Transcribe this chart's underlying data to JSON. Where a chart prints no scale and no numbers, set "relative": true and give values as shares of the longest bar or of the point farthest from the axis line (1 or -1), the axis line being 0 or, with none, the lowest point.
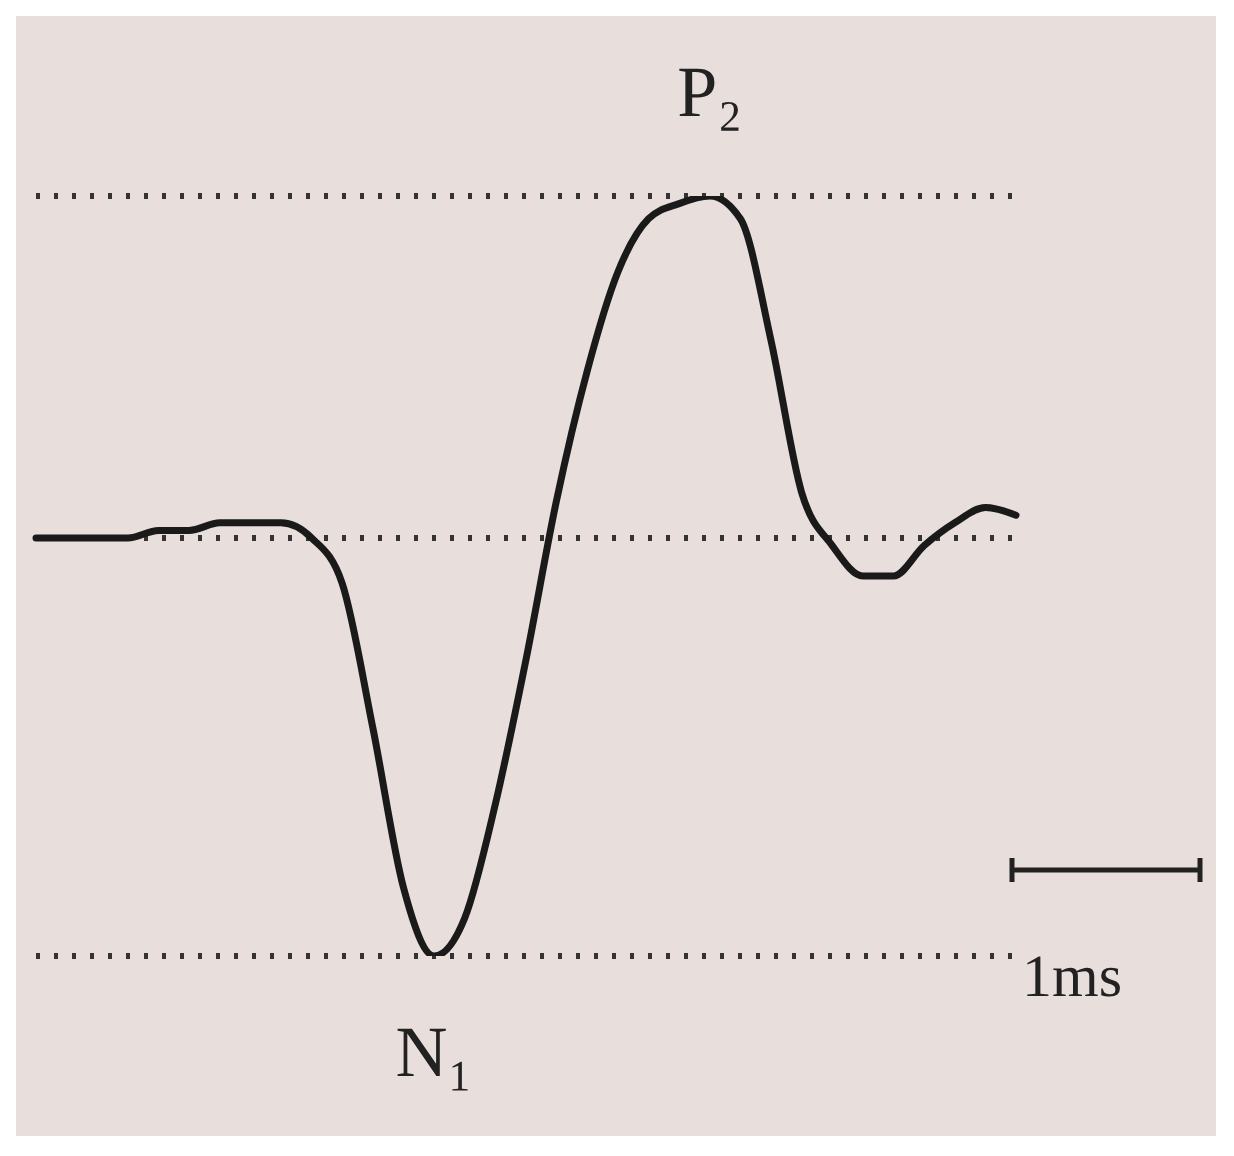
{
  "chart_data": {
    "type": "line",
    "relative": true,
    "categories": [
      null,
      null,
      null,
      null,
      null,
      null,
      null,
      null,
      null,
      null,
      null,
      null,
      null,
      null,
      null,
      null,
      null,
      null,
      null,
      null,
      null,
      null,
      null,
      null,
      null,
      null,
      null,
      null,
      null,
      null,
      null,
      null,
      null
    ],
    "series": [
      {
        "color": "#1a1a1a",
        "values": [
          0.55,
          0.55,
          0.55,
          0.55,
          0.56,
          0.56,
          0.57,
          0.57,
          0.57,
          0.55,
          0.49,
          0.3,
          0.09,
          0,
          0.05,
          0.2,
          0.39,
          0.6,
          0.77,
          0.9,
          0.97,
          0.99,
          1,
          0.97,
          0.81,
          0.61,
          0.54,
          0.5,
          0.5,
          0.54,
          0.57,
          0.59,
          0.58
        ]
      }
    ],
    "ref_lines": [
      {
        "axis": "y",
        "value": 1,
        "color": "#333333",
        "line_style": "dotted"
      },
      {
        "axis": "y",
        "value": 0.55,
        "color": "#333333",
        "line_style": "dotted"
      },
      {
        "axis": "y",
        "value": 0,
        "color": "#333333",
        "line_style": "dotted"
      }
    ],
    "annotations": [
      "P₂",
      "N₁",
      "1ms"
    ],
    "marker": "none",
    "line_style": "solid"
  }
}
